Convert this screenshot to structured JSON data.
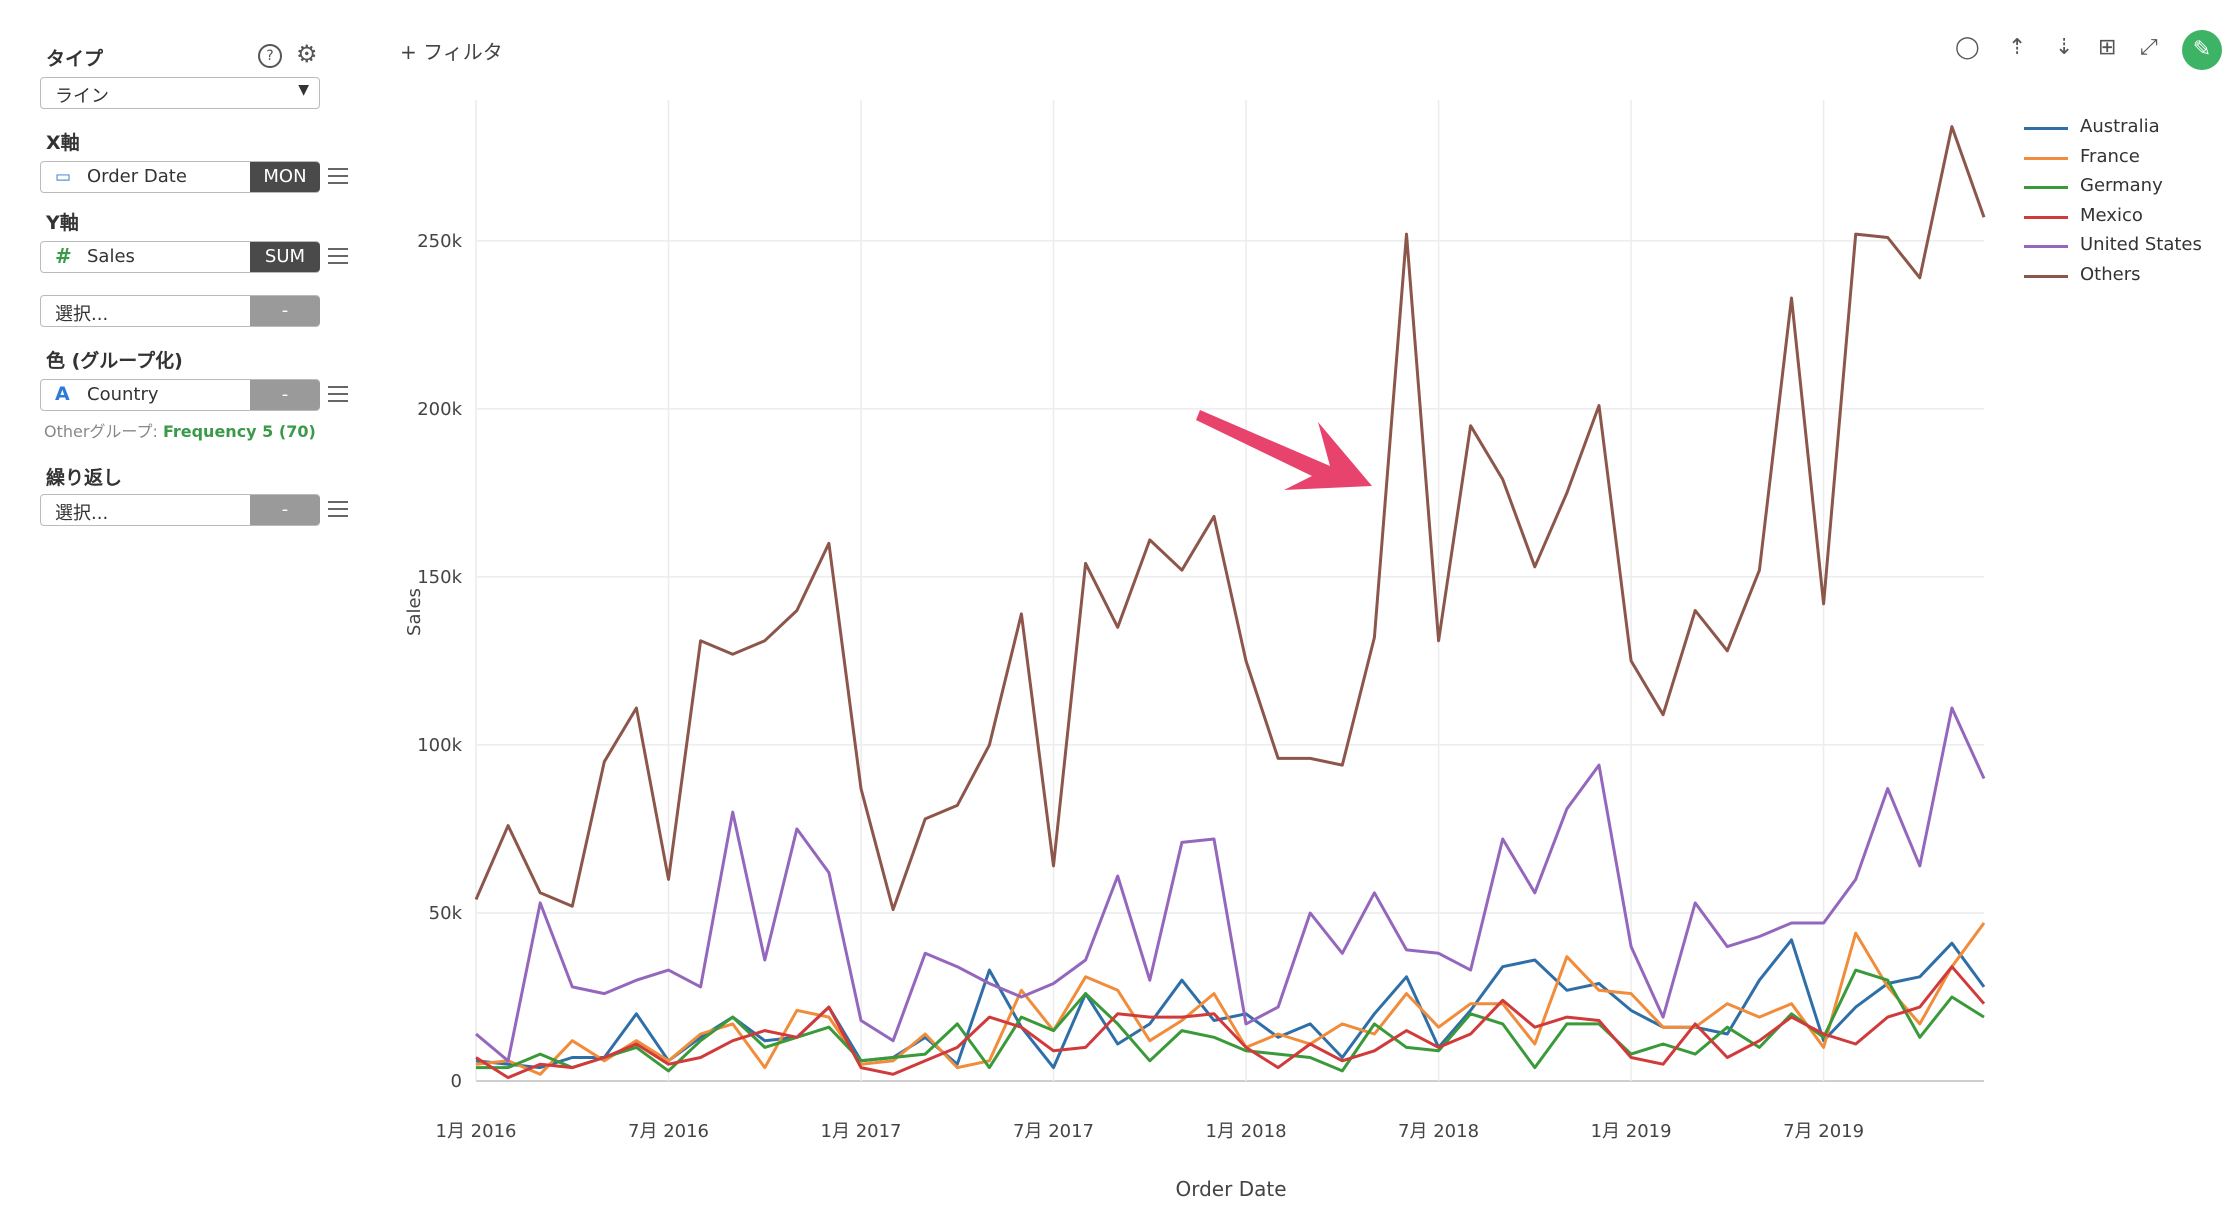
{
  "panel": {
    "type_label": "タイプ",
    "type_value": "ライン",
    "x_label": "X軸",
    "x_field": "Order Date",
    "x_agg": "MON",
    "y_label": "Y軸",
    "y_field": "Sales",
    "y_agg": "SUM",
    "select_placeholder": "選択...",
    "dash": "-",
    "color_label": "色 (グループ化)",
    "color_field": "Country",
    "other_group_prefix": "Otherグループ: ",
    "other_group_value": "Frequency 5 (70)",
    "repeat_label": "繰り返し"
  },
  "toolbar": {
    "filter_label": "+ フィルタ",
    "icons": [
      "comment-icon",
      "upload-icon",
      "download-icon",
      "table-icon",
      "expand-icon",
      "pin-icon"
    ]
  },
  "chart_data": {
    "type": "line",
    "xlabel": "Order Date",
    "ylabel": "Sales",
    "ylim": [
      0,
      280000
    ],
    "yticks": [
      0,
      50000,
      100000,
      150000,
      200000,
      250000
    ],
    "ytick_labels": [
      "0",
      "50k",
      "100k",
      "150k",
      "200k",
      "250k"
    ],
    "xtick_labels": [
      "1月 2016",
      "7月 2016",
      "1月 2017",
      "7月 2017",
      "1月 2018",
      "7月 2018",
      "1月 2019",
      "7月 2019"
    ],
    "x": [
      "2016-01",
      "2016-02",
      "2016-03",
      "2016-04",
      "2016-05",
      "2016-06",
      "2016-07",
      "2016-08",
      "2016-09",
      "2016-10",
      "2016-11",
      "2016-12",
      "2017-01",
      "2017-02",
      "2017-03",
      "2017-04",
      "2017-05",
      "2017-06",
      "2017-07",
      "2017-08",
      "2017-09",
      "2017-10",
      "2017-11",
      "2017-12",
      "2018-01",
      "2018-02",
      "2018-03",
      "2018-04",
      "2018-05",
      "2018-06",
      "2018-07",
      "2018-08",
      "2018-09",
      "2018-10",
      "2018-11",
      "2018-12",
      "2019-01",
      "2019-02",
      "2019-03",
      "2019-04",
      "2019-05",
      "2019-06",
      "2019-07",
      "2019-08",
      "2019-09",
      "2019-10",
      "2019-11",
      "2019-12"
    ],
    "grid": true,
    "legend_position": "top-right",
    "series": [
      {
        "name": "Australia",
        "color": "#2e6fa8",
        "values": [
          6000,
          5000,
          4000,
          7000,
          7000,
          20000,
          6000,
          13000,
          19000,
          12000,
          13000,
          22000,
          6000,
          7000,
          13000,
          5000,
          33000,
          16000,
          4000,
          26000,
          11000,
          17000,
          30000,
          18000,
          20000,
          13000,
          17000,
          7000,
          20000,
          31000,
          10000,
          21000,
          34000,
          36000,
          27000,
          29000,
          21000,
          16000,
          16000,
          14000,
          30000,
          42000,
          12000,
          22000,
          29000,
          31000,
          41000,
          28000
        ]
      },
      {
        "name": "France",
        "color": "#f08c3a",
        "values": [
          5000,
          6000,
          2000,
          12000,
          6000,
          12000,
          6000,
          14000,
          17000,
          4000,
          21000,
          19000,
          5000,
          6000,
          14000,
          4000,
          6000,
          27000,
          15000,
          31000,
          27000,
          12000,
          18000,
          26000,
          10000,
          14000,
          11000,
          17000,
          14000,
          26000,
          16000,
          23000,
          23000,
          11000,
          37000,
          27000,
          26000,
          16000,
          16000,
          23000,
          19000,
          23000,
          10000,
          44000,
          28000,
          17000,
          34000,
          47000
        ]
      },
      {
        "name": "Germany",
        "color": "#3a9a3a",
        "values": [
          4000,
          4000,
          8000,
          4000,
          7000,
          10000,
          3000,
          12000,
          19000,
          10000,
          13000,
          16000,
          6000,
          7000,
          8000,
          17000,
          4000,
          19000,
          15000,
          26000,
          17000,
          6000,
          15000,
          13000,
          9000,
          8000,
          7000,
          3000,
          17000,
          10000,
          9000,
          20000,
          17000,
          4000,
          17000,
          17000,
          8000,
          11000,
          8000,
          16000,
          10000,
          20000,
          13000,
          33000,
          30000,
          13000,
          25000,
          19000
        ]
      },
      {
        "name": "Mexico",
        "color": "#d13a3a",
        "values": [
          7000,
          1000,
          5000,
          4000,
          7000,
          11000,
          5000,
          7000,
          12000,
          15000,
          13000,
          22000,
          4000,
          2000,
          6000,
          10000,
          19000,
          16000,
          9000,
          10000,
          20000,
          19000,
          19000,
          20000,
          10000,
          4000,
          11000,
          6000,
          9000,
          15000,
          10000,
          14000,
          24000,
          16000,
          19000,
          18000,
          7000,
          5000,
          17000,
          7000,
          12000,
          19000,
          14000,
          11000,
          19000,
          22000,
          34000,
          23000
        ]
      },
      {
        "name": "United States",
        "color": "#9467bd",
        "values": [
          14000,
          6000,
          53000,
          28000,
          26000,
          30000,
          33000,
          28000,
          80000,
          36000,
          75000,
          62000,
          18000,
          12000,
          38000,
          34000,
          29000,
          25000,
          29000,
          36000,
          61000,
          30000,
          71000,
          72000,
          17000,
          22000,
          50000,
          38000,
          56000,
          39000,
          38000,
          33000,
          72000,
          56000,
          81000,
          94000,
          40000,
          19000,
          53000,
          40000,
          43000,
          47000,
          47000,
          60000,
          87000,
          64000,
          111000,
          90000
        ]
      },
      {
        "name": "Others",
        "color": "#8c564b",
        "values": [
          54000,
          76000,
          56000,
          52000,
          95000,
          111000,
          60000,
          131000,
          127000,
          131000,
          140000,
          160000,
          87000,
          51000,
          78000,
          82000,
          100000,
          139000,
          64000,
          154000,
          135000,
          161000,
          152000,
          168000,
          125000,
          96000,
          96000,
          94000,
          132000,
          252000,
          131000,
          195000,
          179000,
          153000,
          175000,
          201000,
          125000,
          109000,
          140000,
          128000,
          152000,
          233000,
          142000,
          252000,
          251000,
          239000,
          284000,
          257000
        ]
      }
    ]
  }
}
